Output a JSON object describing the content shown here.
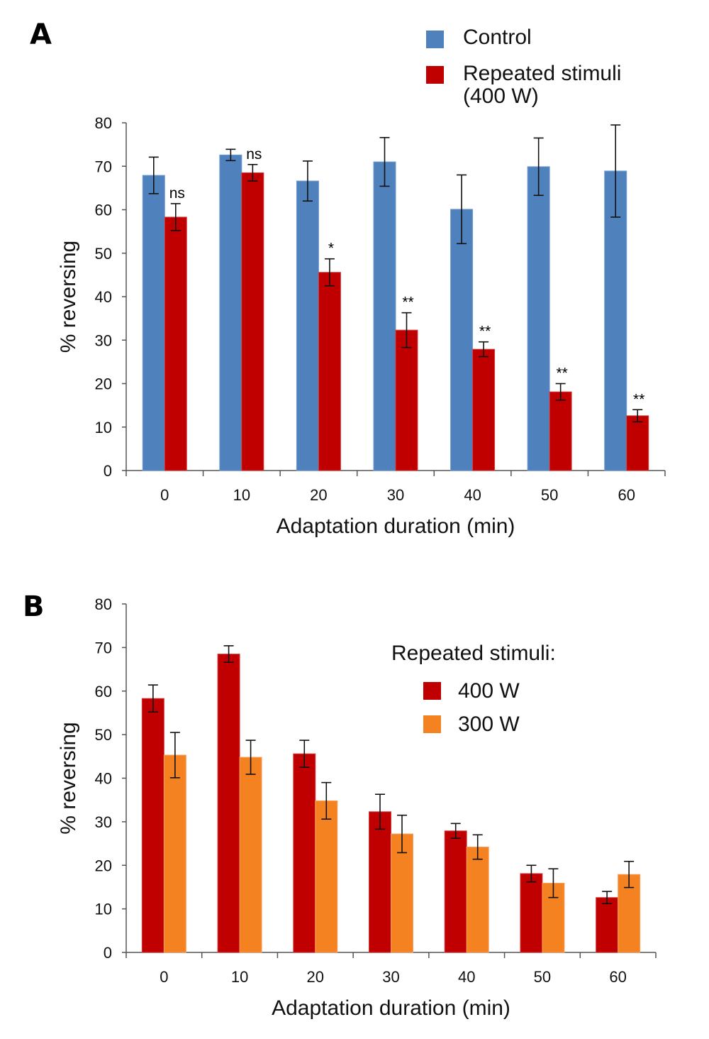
{
  "chart_data": [
    {
      "panel": "A",
      "type": "bar",
      "title": "",
      "xlabel": "Adaptation duration (min)",
      "ylabel": "% reversing",
      "ylim": [
        0,
        80
      ],
      "yticks": [
        0,
        10,
        20,
        30,
        40,
        50,
        60,
        70,
        80
      ],
      "categories": [
        "0",
        "10",
        "20",
        "30",
        "40",
        "50",
        "60"
      ],
      "legend_position": "top-right",
      "legend_title": "",
      "series": [
        {
          "name": "Control",
          "color": "#4f81bd",
          "values": [
            67.9,
            72.6,
            66.6,
            71.0,
            60.1,
            69.9,
            68.9
          ],
          "errors": [
            4.2,
            1.3,
            4.6,
            5.6,
            7.9,
            6.6,
            10.6
          ]
        },
        {
          "name": "Repeated stimuli (400 W)",
          "color": "#c00000",
          "values": [
            58.3,
            68.5,
            45.6,
            32.3,
            27.9,
            18.1,
            12.6
          ],
          "errors": [
            3.1,
            1.9,
            3.1,
            4.0,
            1.7,
            1.9,
            1.4
          ]
        }
      ],
      "legend_labels": [
        "Control",
        "Repeated stimuli",
        "(400 W)"
      ],
      "annotations": [
        "ns",
        "ns",
        "*",
        "**",
        "**",
        "**",
        "**"
      ]
    },
    {
      "panel": "B",
      "type": "bar",
      "title": "",
      "xlabel": "Adaptation duration (min)",
      "ylabel": "% reversing",
      "ylim": [
        0,
        80
      ],
      "yticks": [
        0,
        10,
        20,
        30,
        40,
        50,
        60,
        70,
        80
      ],
      "categories": [
        "0",
        "10",
        "20",
        "30",
        "40",
        "50",
        "60"
      ],
      "legend_position": "top-right",
      "legend_title": "Repeated stimuli:",
      "series": [
        {
          "name": "400 W",
          "color": "#c00000",
          "values": [
            58.3,
            68.5,
            45.6,
            32.3,
            27.9,
            18.1,
            12.6
          ],
          "errors": [
            3.1,
            1.9,
            3.1,
            4.0,
            1.7,
            1.9,
            1.4
          ]
        },
        {
          "name": "300 W",
          "color": "#f58220",
          "values": [
            45.3,
            44.8,
            34.8,
            27.2,
            24.2,
            15.9,
            17.9
          ],
          "errors": [
            5.2,
            3.9,
            4.2,
            4.3,
            2.8,
            3.3,
            3.0
          ]
        }
      ],
      "legend_labels": [
        "400 W",
        "300 W"
      ],
      "annotations": []
    }
  ],
  "panels": {
    "a_letter": "A",
    "b_letter": "B"
  }
}
